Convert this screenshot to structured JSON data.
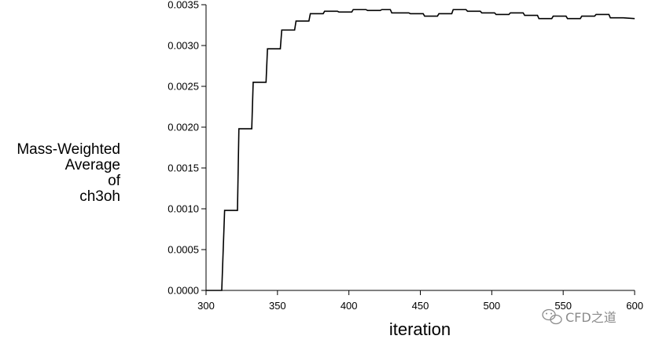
{
  "chart_data": {
    "type": "line",
    "title": "",
    "xlabel": "iteration",
    "ylabel_lines": [
      "Mass-Weighted",
      "Average",
      "of",
      "ch3oh"
    ],
    "xlim": [
      300,
      600
    ],
    "ylim": [
      0,
      0.0035
    ],
    "x_ticks": [
      300,
      350,
      400,
      450,
      500,
      550,
      600
    ],
    "x_tick_labels": [
      "300",
      "350",
      "400",
      "450",
      "500",
      "550",
      "600"
    ],
    "y_ticks": [
      0,
      0.0005,
      0.001,
      0.0015,
      0.002,
      0.0025,
      0.003,
      0.0035
    ],
    "y_tick_labels": [
      "0.0000",
      "0.0005",
      "0.0010",
      "0.0015",
      "0.0020",
      "0.0025",
      "0.0030",
      "0.0035"
    ],
    "grid": false,
    "line_color": "#000000",
    "series": [
      {
        "points": [
          [
            300,
            0
          ],
          [
            311,
            0
          ],
          [
            313,
            0.00098
          ],
          [
            322,
            0.00098
          ],
          [
            323,
            0.00198
          ],
          [
            332,
            0.00198
          ],
          [
            333,
            0.00255
          ],
          [
            342,
            0.00255
          ],
          [
            343,
            0.00296
          ],
          [
            352,
            0.00296
          ],
          [
            353,
            0.00319
          ],
          [
            362,
            0.00319
          ],
          [
            363,
            0.0033
          ],
          [
            372,
            0.0033
          ],
          [
            373,
            0.00339
          ],
          [
            382,
            0.00339
          ],
          [
            383,
            0.00342
          ],
          [
            392,
            0.00342
          ],
          [
            393,
            0.00341
          ],
          [
            402,
            0.00341
          ],
          [
            403,
            0.00344
          ],
          [
            412,
            0.00344
          ],
          [
            413,
            0.00343
          ],
          [
            422,
            0.00343
          ],
          [
            423,
            0.00344
          ],
          [
            429,
            0.00344
          ],
          [
            430,
            0.0034
          ],
          [
            442,
            0.0034
          ],
          [
            443,
            0.00339
          ],
          [
            452,
            0.00339
          ],
          [
            453,
            0.00336
          ],
          [
            462,
            0.00336
          ],
          [
            463,
            0.00339
          ],
          [
            472,
            0.00339
          ],
          [
            473,
            0.00344
          ],
          [
            482,
            0.00344
          ],
          [
            483,
            0.00342
          ],
          [
            492,
            0.00342
          ],
          [
            493,
            0.0034
          ],
          [
            502,
            0.0034
          ],
          [
            503,
            0.00338
          ],
          [
            512,
            0.00338
          ],
          [
            513,
            0.0034
          ],
          [
            522,
            0.0034
          ],
          [
            523,
            0.00337
          ],
          [
            532,
            0.00337
          ],
          [
            533,
            0.00333
          ],
          [
            542,
            0.00333
          ],
          [
            543,
            0.00336
          ],
          [
            552,
            0.00336
          ],
          [
            553,
            0.00333
          ],
          [
            562,
            0.00333
          ],
          [
            563,
            0.00336
          ],
          [
            572,
            0.00336
          ],
          [
            573,
            0.00338
          ],
          [
            582,
            0.00338
          ],
          [
            583,
            0.00334
          ],
          [
            592,
            0.00334
          ],
          [
            600,
            0.00333
          ]
        ]
      }
    ]
  },
  "watermark": {
    "text": "CFD之道",
    "icon": "wechat-icon",
    "color": "#8a8a8a"
  }
}
